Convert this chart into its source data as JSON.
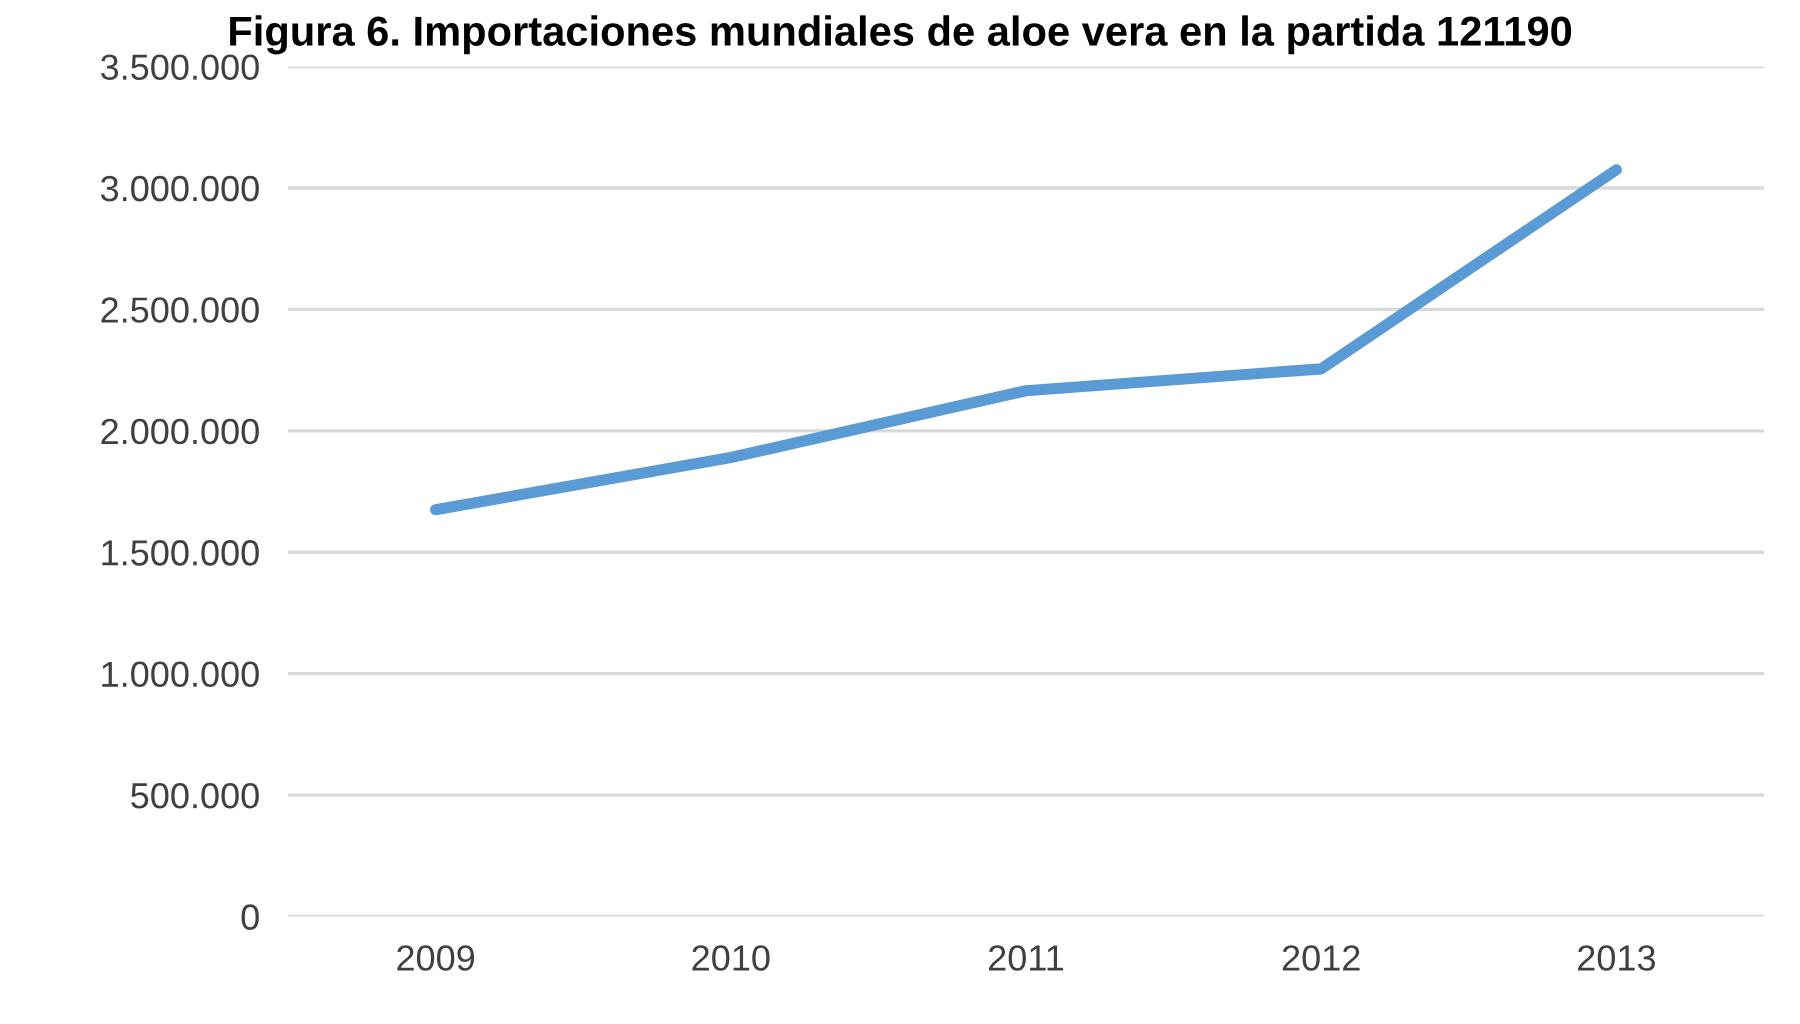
{
  "chart_data": {
    "type": "line",
    "title": "Figura 6. Importaciones mundiales de aloe vera en la partida 121190",
    "categories": [
      "2009",
      "2010",
      "2011",
      "2012",
      "2013"
    ],
    "series": [
      {
        "color": "#5b9bd5",
        "values": [
          1675000,
          1890000,
          2165000,
          2255000,
          3075000
        ]
      }
    ],
    "ylim": [
      0,
      3500000
    ],
    "yticks": [
      {
        "value": 0,
        "label": "0"
      },
      {
        "value": 500000,
        "label": "500.000"
      },
      {
        "value": 1000000,
        "label": "1.000.000"
      },
      {
        "value": 1500000,
        "label": "1.500.000"
      },
      {
        "value": 2000000,
        "label": "2.000.000"
      },
      {
        "value": 2500000,
        "label": "2.500.000"
      },
      {
        "value": 3000000,
        "label": "3.000.000"
      },
      {
        "value": 3500000,
        "label": "3.500.000"
      }
    ],
    "grid": "y",
    "marker": "none",
    "line_style": "solid"
  }
}
